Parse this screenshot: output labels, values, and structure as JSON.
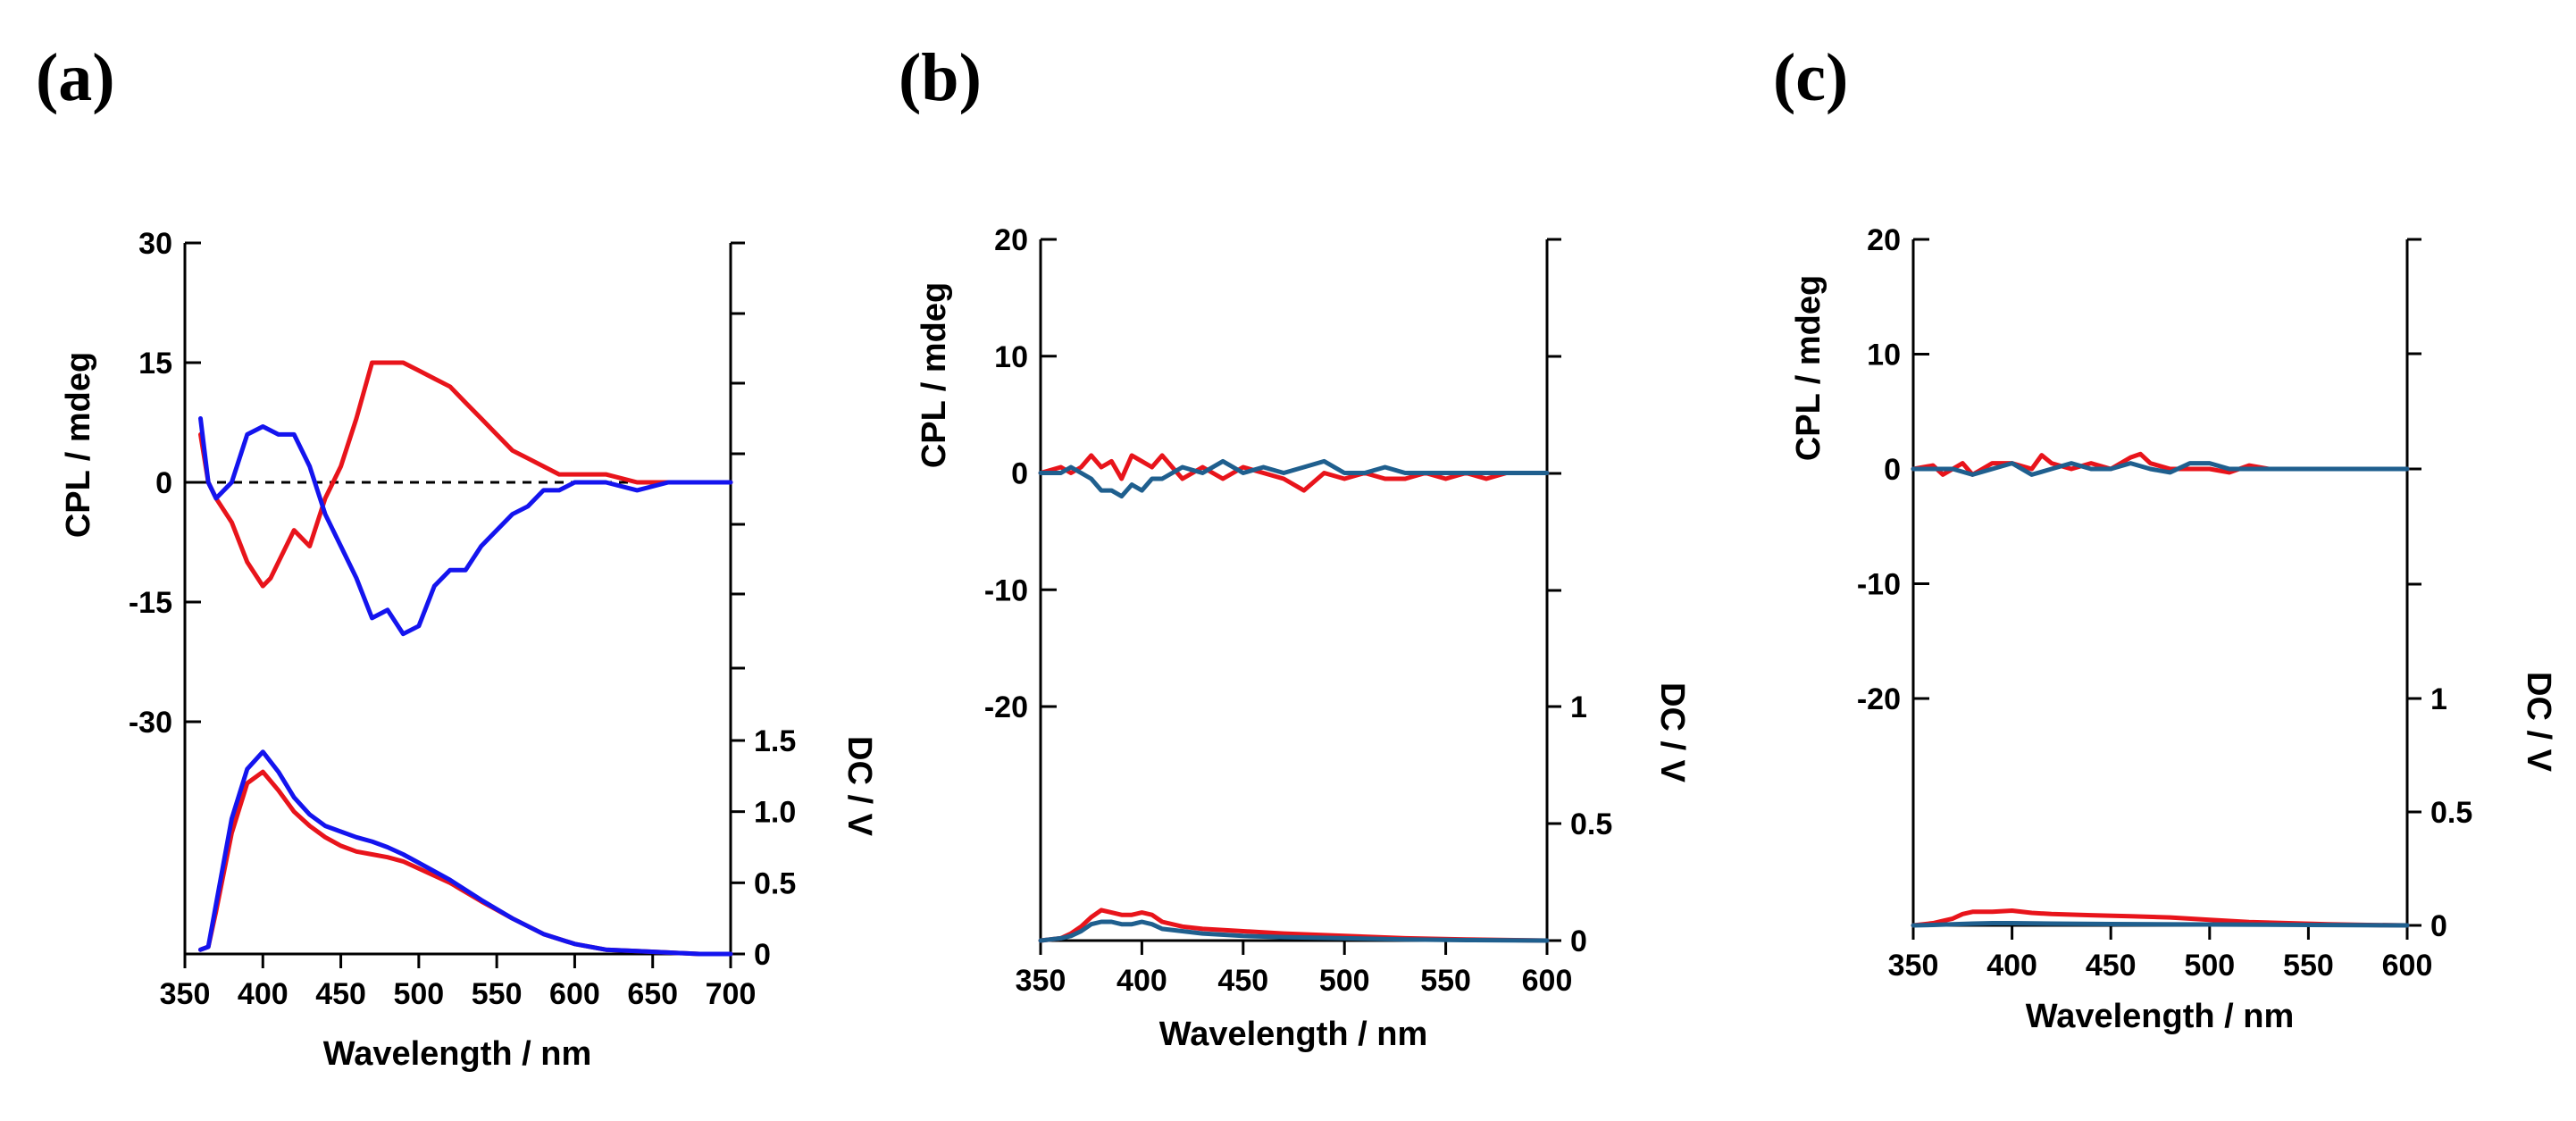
{
  "chart_data": [
    {
      "type": "line",
      "panel_label": "(a)",
      "xlabel": "Wavelength / nm",
      "ylabel": "CPL / mdeg",
      "y2label": "DC / V",
      "xlim": [
        350,
        700
      ],
      "x_ticks": [
        "350",
        "400",
        "450",
        "500",
        "550",
        "600",
        "650",
        "700"
      ],
      "y_ticks": [
        "30",
        "15",
        "0",
        "-15",
        "-30"
      ],
      "y2_ticks": [
        "1.5",
        "1.0",
        "0.5",
        "0"
      ],
      "zero_line": "dashed",
      "series": [
        {
          "axis": "cpl",
          "color": "#e8141b",
          "x": [
            360,
            365,
            370,
            380,
            390,
            400,
            405,
            410,
            420,
            430,
            440,
            450,
            460,
            470,
            480,
            490,
            500,
            510,
            520,
            530,
            540,
            550,
            560,
            570,
            580,
            590,
            600,
            620,
            640,
            660,
            680,
            700
          ],
          "y": [
            6,
            0,
            -2,
            -5,
            -10,
            -13,
            -12,
            -10,
            -6,
            -8,
            -2,
            2,
            8,
            15,
            15,
            15,
            14,
            13,
            12,
            10,
            8,
            6,
            4,
            3,
            2,
            1,
            1,
            1,
            0,
            0,
            0,
            0
          ]
        },
        {
          "axis": "cpl",
          "color": "#1414ee",
          "x": [
            360,
            365,
            370,
            380,
            390,
            400,
            410,
            420,
            430,
            440,
            450,
            460,
            470,
            480,
            490,
            500,
            510,
            520,
            530,
            540,
            550,
            560,
            570,
            580,
            590,
            600,
            620,
            640,
            660,
            680,
            700
          ],
          "y": [
            8,
            0,
            -2,
            0,
            6,
            7,
            6,
            6,
            2,
            -4,
            -8,
            -12,
            -17,
            -16,
            -19,
            -18,
            -13,
            -11,
            -11,
            -8,
            -6,
            -4,
            -3,
            -1,
            -1,
            0,
            0,
            -1,
            0,
            0,
            0
          ]
        },
        {
          "axis": "dc",
          "color": "#e8141b",
          "x": [
            360,
            365,
            370,
            380,
            390,
            400,
            410,
            420,
            430,
            440,
            450,
            460,
            470,
            480,
            490,
            500,
            520,
            540,
            560,
            580,
            600,
            620,
            640,
            660,
            680,
            700
          ],
          "y": [
            0.03,
            0.05,
            0.3,
            0.85,
            1.2,
            1.28,
            1.15,
            1.0,
            0.9,
            0.82,
            0.76,
            0.72,
            0.7,
            0.68,
            0.65,
            0.6,
            0.5,
            0.37,
            0.25,
            0.14,
            0.07,
            0.03,
            0.02,
            0.01,
            0.0,
            0.0
          ]
        },
        {
          "axis": "dc",
          "color": "#1414ee",
          "x": [
            360,
            365,
            370,
            380,
            390,
            400,
            410,
            420,
            430,
            440,
            450,
            460,
            470,
            480,
            490,
            500,
            520,
            540,
            560,
            580,
            600,
            620,
            640,
            660,
            680,
            700
          ],
          "y": [
            0.03,
            0.05,
            0.35,
            0.95,
            1.3,
            1.42,
            1.28,
            1.1,
            0.98,
            0.9,
            0.86,
            0.82,
            0.79,
            0.75,
            0.7,
            0.64,
            0.52,
            0.38,
            0.25,
            0.14,
            0.07,
            0.03,
            0.02,
            0.01,
            0.0,
            0.0
          ]
        }
      ]
    },
    {
      "type": "line",
      "panel_label": "(b)",
      "xlabel": "Wavelength / nm",
      "ylabel": "CPL / mdeg",
      "y2label": "DC / V",
      "xlim": [
        350,
        600
      ],
      "x_ticks": [
        "350",
        "400",
        "450",
        "500",
        "550",
        "600"
      ],
      "y_ticks": [
        "20",
        "10",
        "0",
        "-10",
        "-20"
      ],
      "y2_ticks": [
        "1",
        "0.5",
        "0"
      ],
      "series": [
        {
          "axis": "cpl",
          "color": "#e8141b",
          "x": [
            350,
            360,
            365,
            370,
            375,
            380,
            385,
            390,
            395,
            400,
            405,
            410,
            415,
            420,
            430,
            440,
            450,
            460,
            470,
            480,
            490,
            500,
            510,
            520,
            530,
            540,
            550,
            560,
            570,
            580,
            590,
            600
          ],
          "y": [
            0,
            0.5,
            0,
            0.5,
            1.5,
            0.5,
            1,
            -0.5,
            1.5,
            1,
            0.5,
            1.5,
            0.5,
            -0.5,
            0.5,
            -0.5,
            0.5,
            0,
            -0.5,
            -1.5,
            0,
            -0.5,
            0,
            -0.5,
            -0.5,
            0,
            -0.5,
            0,
            -0.5,
            0,
            0,
            0
          ]
        },
        {
          "axis": "cpl",
          "color": "#1f5f8e",
          "x": [
            350,
            360,
            365,
            370,
            375,
            380,
            385,
            390,
            395,
            400,
            405,
            410,
            420,
            430,
            440,
            450,
            460,
            470,
            480,
            490,
            500,
            510,
            520,
            530,
            540,
            550,
            560,
            570,
            580,
            590,
            600
          ],
          "y": [
            0,
            0,
            0.5,
            0,
            -0.5,
            -1.5,
            -1.5,
            -2,
            -1,
            -1.5,
            -0.5,
            -0.5,
            0.5,
            0,
            1,
            0,
            0.5,
            0,
            0.5,
            1,
            0,
            0,
            0.5,
            0,
            0,
            0,
            0,
            0,
            0,
            0,
            0
          ]
        },
        {
          "axis": "dc",
          "color": "#e8141b",
          "x": [
            350,
            360,
            365,
            370,
            375,
            380,
            385,
            390,
            395,
            400,
            405,
            410,
            420,
            430,
            450,
            470,
            500,
            530,
            560,
            600
          ],
          "y": [
            0.0,
            0.01,
            0.03,
            0.06,
            0.1,
            0.13,
            0.12,
            0.11,
            0.11,
            0.12,
            0.11,
            0.08,
            0.06,
            0.05,
            0.04,
            0.03,
            0.02,
            0.01,
            0.005,
            0.0
          ]
        },
        {
          "axis": "dc",
          "color": "#1f5f8e",
          "x": [
            350,
            360,
            365,
            370,
            375,
            380,
            385,
            390,
            395,
            400,
            405,
            410,
            420,
            430,
            450,
            470,
            500,
            530,
            560,
            600
          ],
          "y": [
            0.0,
            0.01,
            0.02,
            0.04,
            0.07,
            0.08,
            0.08,
            0.07,
            0.07,
            0.08,
            0.07,
            0.05,
            0.04,
            0.03,
            0.02,
            0.015,
            0.01,
            0.005,
            0.002,
            0.0
          ]
        }
      ]
    },
    {
      "type": "line",
      "panel_label": "(c)",
      "xlabel": "Wavelength / nm",
      "ylabel": "CPL / mdeg",
      "y2label": "DC / V",
      "xlim": [
        350,
        600
      ],
      "x_ticks": [
        "350",
        "400",
        "450",
        "500",
        "550",
        "600"
      ],
      "y_ticks": [
        "20",
        "10",
        "0",
        "-10",
        "-20"
      ],
      "y2_ticks": [
        "1",
        "0.5",
        "0"
      ],
      "series": [
        {
          "axis": "cpl",
          "color": "#e8141b",
          "x": [
            350,
            360,
            365,
            370,
            375,
            380,
            385,
            390,
            400,
            410,
            415,
            420,
            430,
            440,
            450,
            460,
            465,
            470,
            480,
            490,
            500,
            510,
            520,
            530,
            540,
            550,
            560,
            570,
            580,
            590,
            600
          ],
          "y": [
            0,
            0.3,
            -0.5,
            0,
            0.5,
            -0.5,
            0,
            0.5,
            0.5,
            0,
            1.2,
            0.5,
            0,
            0.5,
            0,
            1,
            1.3,
            0.5,
            0,
            0,
            0,
            -0.3,
            0.3,
            0,
            0,
            0,
            0,
            0,
            0,
            0,
            0
          ]
        },
        {
          "axis": "cpl",
          "color": "#1f5f8e",
          "x": [
            350,
            360,
            370,
            380,
            390,
            400,
            410,
            420,
            430,
            440,
            450,
            460,
            470,
            480,
            490,
            500,
            510,
            520,
            530,
            540,
            550,
            560,
            570,
            580,
            590,
            600
          ],
          "y": [
            0,
            0,
            0,
            -0.5,
            0,
            0.5,
            -0.5,
            0,
            0.5,
            0,
            0,
            0.5,
            0,
            -0.3,
            0.5,
            0.5,
            0,
            0,
            0,
            0,
            0,
            0,
            0,
            0,
            0,
            0
          ]
        },
        {
          "axis": "dc",
          "color": "#e8141b",
          "x": [
            350,
            360,
            365,
            370,
            375,
            380,
            390,
            400,
            410,
            420,
            440,
            460,
            480,
            500,
            520,
            540,
            560,
            580,
            600
          ],
          "y": [
            0.0,
            0.01,
            0.02,
            0.03,
            0.05,
            0.06,
            0.06,
            0.065,
            0.055,
            0.05,
            0.045,
            0.04,
            0.035,
            0.025,
            0.015,
            0.01,
            0.005,
            0.002,
            0.0
          ]
        },
        {
          "axis": "dc",
          "color": "#1f5f8e",
          "x": [
            350,
            360,
            370,
            380,
            390,
            400,
            420,
            450,
            500,
            550,
            600
          ],
          "y": [
            0.0,
            0.002,
            0.005,
            0.008,
            0.01,
            0.01,
            0.008,
            0.006,
            0.004,
            0.002,
            0.0
          ]
        }
      ]
    }
  ]
}
